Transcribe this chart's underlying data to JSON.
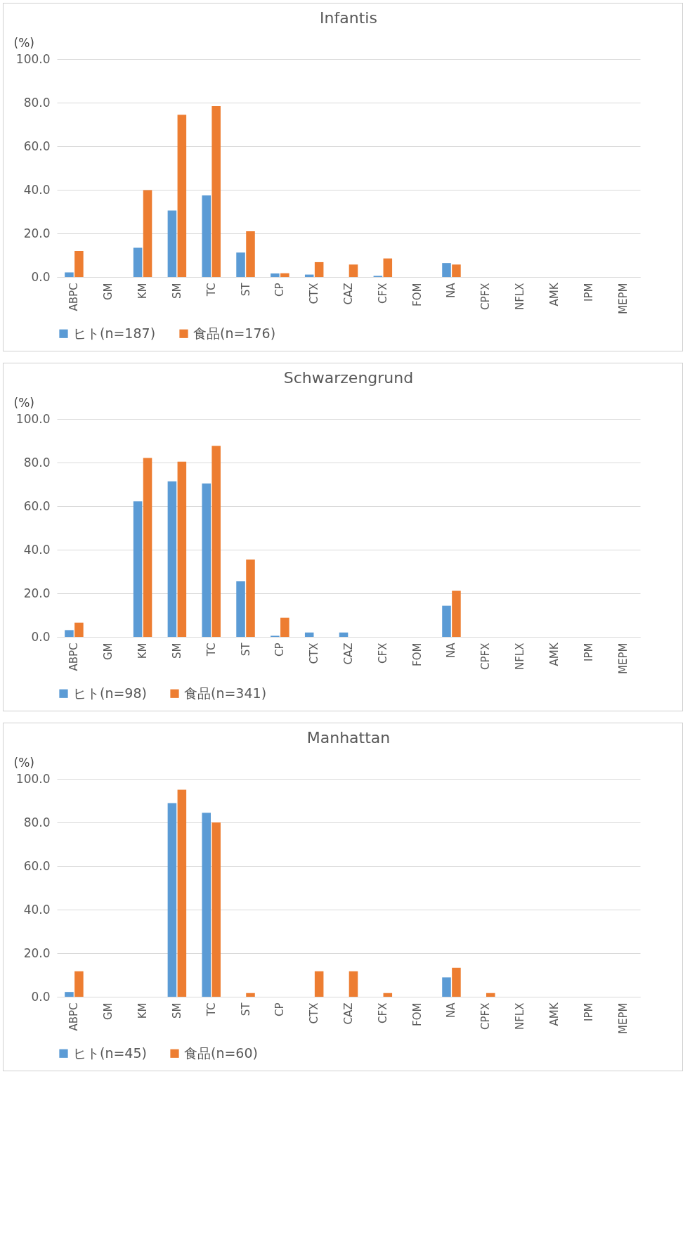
{
  "chart_data": [
    {
      "type": "bar",
      "title": "Infantis",
      "ylabel": "(%)",
      "categories": [
        "ABPC",
        "GM",
        "KM",
        "SM",
        "TC",
        "ST",
        "CP",
        "CTX",
        "CAZ",
        "CFX",
        "FOM",
        "NA",
        "CPFX",
        "NFLX",
        "AMK",
        "IPM",
        "MEPM"
      ],
      "ylim": [
        0,
        100
      ],
      "yticks": [
        {
          "value": 0,
          "label": "0.0"
        },
        {
          "value": 20,
          "label": "20.0"
        },
        {
          "value": 40,
          "label": "40.0"
        },
        {
          "value": 60,
          "label": "60.0"
        },
        {
          "value": 80,
          "label": "80.0"
        },
        {
          "value": 100,
          "label": "100.0"
        }
      ],
      "grid": "y",
      "legend": "bottom",
      "series": [
        {
          "name": "ヒト(n=187)",
          "color": "#5b9bd5",
          "values": [
            2.1,
            0,
            13.4,
            30.5,
            37.4,
            11.2,
            1.6,
            1.1,
            0,
            0.5,
            0,
            6.4,
            0,
            0,
            0,
            0,
            0
          ]
        },
        {
          "name": "食品(n=176)",
          "color": "#ed7d31",
          "values": [
            11.9,
            0,
            39.8,
            74.4,
            78.4,
            21.0,
            1.7,
            6.8,
            5.7,
            8.5,
            0,
            5.7,
            0,
            0,
            0,
            0,
            0
          ]
        }
      ]
    },
    {
      "type": "bar",
      "title": "Schwarzengrund",
      "ylabel": "(%)",
      "categories": [
        "ABPC",
        "GM",
        "KM",
        "SM",
        "TC",
        "ST",
        "CP",
        "CTX",
        "CAZ",
        "CFX",
        "FOM",
        "NA",
        "CPFX",
        "NFLX",
        "AMK",
        "IPM",
        "MEPM"
      ],
      "ylim": [
        0,
        100
      ],
      "yticks": [
        {
          "value": 0,
          "label": "0.0"
        },
        {
          "value": 20,
          "label": "20.0"
        },
        {
          "value": 40,
          "label": "40.0"
        },
        {
          "value": 60,
          "label": "60.0"
        },
        {
          "value": 80,
          "label": "80.0"
        },
        {
          "value": 100,
          "label": "100.0"
        }
      ],
      "grid": "y",
      "legend": "bottom",
      "series": [
        {
          "name": "ヒト(n=98)",
          "color": "#5b9bd5",
          "values": [
            3.1,
            0,
            62.2,
            71.4,
            70.4,
            25.5,
            0.5,
            2.0,
            2.0,
            0,
            0,
            14.3,
            0,
            0,
            0,
            0,
            0
          ]
        },
        {
          "name": "食品(n=341)",
          "color": "#ed7d31",
          "values": [
            6.5,
            0,
            82.1,
            80.4,
            87.7,
            35.5,
            8.8,
            0,
            0,
            0,
            0,
            21.1,
            0,
            0,
            0,
            0,
            0
          ]
        }
      ]
    },
    {
      "type": "bar",
      "title": "Manhattan",
      "ylabel": "(%)",
      "categories": [
        "ABPC",
        "GM",
        "KM",
        "SM",
        "TC",
        "ST",
        "CP",
        "CTX",
        "CAZ",
        "CFX",
        "FOM",
        "NA",
        "CPFX",
        "NFLX",
        "AMK",
        "IPM",
        "MEPM"
      ],
      "ylim": [
        0,
        100
      ],
      "yticks": [
        {
          "value": 0,
          "label": "0.0"
        },
        {
          "value": 20,
          "label": "20.0"
        },
        {
          "value": 40,
          "label": "40.0"
        },
        {
          "value": 60,
          "label": "60.0"
        },
        {
          "value": 80,
          "label": "80.0"
        },
        {
          "value": 100,
          "label": "100.0"
        }
      ],
      "grid": "y",
      "legend": "bottom",
      "series": [
        {
          "name": "ヒト(n=45)",
          "color": "#5b9bd5",
          "values": [
            2.2,
            0,
            0,
            88.9,
            84.4,
            0,
            0,
            0,
            0,
            0,
            0,
            8.9,
            0,
            0,
            0,
            0,
            0
          ]
        },
        {
          "name": "食品(n=60)",
          "color": "#ed7d31",
          "values": [
            11.7,
            0,
            0,
            95.0,
            80.0,
            1.7,
            0,
            11.7,
            11.7,
            1.7,
            0,
            13.3,
            1.7,
            0,
            0,
            0,
            0
          ]
        }
      ]
    }
  ]
}
